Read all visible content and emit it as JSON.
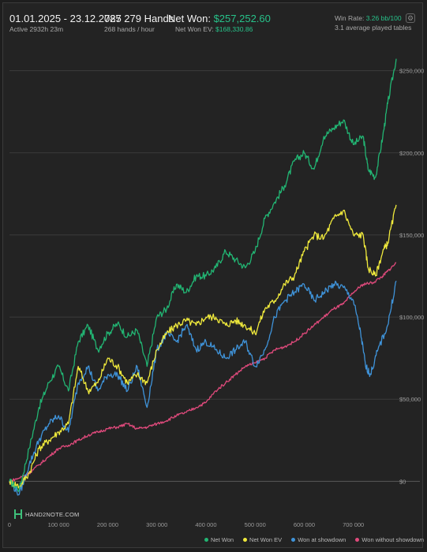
{
  "header": {
    "date_range": "01.01.2025 - 23.12.2025",
    "active": "Active 2932h 23m",
    "hands": "787 279 Hands",
    "hands_per_hour": "268 hands / hour",
    "net_won_label": "Net Won:",
    "net_won_value": "$257,252.60",
    "net_won_ev_label": "Net Won  EV:",
    "net_won_ev_value": "$168,330.86",
    "win_rate_label": "Win Rate:",
    "win_rate_value": "3.26 bb/100",
    "tables": "3.1 average played tables"
  },
  "icons": {
    "settings": "gear-icon"
  },
  "logo": {
    "text": "HAND2NOTE.COM"
  },
  "colors": {
    "net_won": "#22b573",
    "net_won_ev": "#f0ea3c",
    "showdown": "#3f93d9",
    "non_showdown": "#e04a7c"
  },
  "chart_data": {
    "type": "line",
    "xlim": [
      0,
      787279
    ],
    "ylim": [
      -20000,
      270000
    ],
    "x_ticks": [
      0,
      100000,
      200000,
      300000,
      400000,
      500000,
      600000,
      700000
    ],
    "x_tick_labels": [
      "0",
      "100 000",
      "200 000",
      "300 000",
      "400 000",
      "500 000",
      "600 000",
      "700 000"
    ],
    "y_ticks": [
      0,
      50000,
      100000,
      150000,
      200000,
      250000
    ],
    "y_tick_labels": [
      "$0",
      "$50,000",
      "$100,000",
      "$150,000",
      "$200,000",
      "$250,000"
    ],
    "grid": true,
    "legend_position": "bottom-right",
    "series": [
      {
        "name": "Net Won",
        "color_key": "net_won",
        "x": [
          0,
          20000,
          40000,
          60000,
          80000,
          100000,
          120000,
          140000,
          160000,
          180000,
          200000,
          220000,
          240000,
          260000,
          280000,
          300000,
          320000,
          340000,
          360000,
          380000,
          400000,
          420000,
          440000,
          460000,
          480000,
          500000,
          520000,
          540000,
          560000,
          580000,
          600000,
          620000,
          640000,
          660000,
          680000,
          700000,
          720000,
          730000,
          745000,
          760000,
          770000,
          787279
        ],
        "y": [
          0,
          -5000,
          20000,
          45000,
          60000,
          70000,
          55000,
          85000,
          95000,
          80000,
          90000,
          96000,
          88000,
          92000,
          70000,
          100000,
          105000,
          120000,
          115000,
          125000,
          125000,
          130000,
          140000,
          135000,
          130000,
          140000,
          160000,
          170000,
          180000,
          195000,
          200000,
          190000,
          210000,
          215000,
          220000,
          205000,
          210000,
          190000,
          185000,
          210000,
          230000,
          257252
        ]
      },
      {
        "name": "Net Won  EV",
        "color_key": "net_won_ev",
        "x": [
          0,
          20000,
          40000,
          60000,
          80000,
          100000,
          120000,
          140000,
          160000,
          180000,
          200000,
          220000,
          240000,
          260000,
          280000,
          300000,
          320000,
          340000,
          360000,
          380000,
          400000,
          420000,
          440000,
          460000,
          480000,
          500000,
          520000,
          540000,
          560000,
          580000,
          600000,
          620000,
          640000,
          660000,
          680000,
          700000,
          720000,
          730000,
          745000,
          760000,
          770000,
          787279
        ],
        "y": [
          0,
          -3000,
          5000,
          20000,
          25000,
          30000,
          35000,
          70000,
          55000,
          60000,
          75000,
          70000,
          60000,
          65000,
          60000,
          80000,
          90000,
          95000,
          98000,
          95000,
          100000,
          100000,
          95000,
          98000,
          95000,
          90000,
          105000,
          110000,
          120000,
          125000,
          140000,
          150000,
          148000,
          160000,
          165000,
          150000,
          150000,
          130000,
          125000,
          140000,
          145000,
          168330
        ]
      },
      {
        "name": "Won at showdown",
        "color_key": "showdown",
        "x": [
          0,
          20000,
          40000,
          60000,
          80000,
          100000,
          120000,
          140000,
          160000,
          180000,
          200000,
          220000,
          240000,
          260000,
          280000,
          300000,
          320000,
          340000,
          360000,
          380000,
          400000,
          420000,
          440000,
          460000,
          480000,
          500000,
          520000,
          540000,
          560000,
          580000,
          600000,
          620000,
          640000,
          660000,
          680000,
          700000,
          715000,
          725000,
          735000,
          750000,
          770000,
          787279
        ],
        "y": [
          0,
          -8000,
          10000,
          25000,
          35000,
          40000,
          30000,
          60000,
          70000,
          55000,
          65000,
          65000,
          55000,
          70000,
          45000,
          80000,
          90000,
          85000,
          95000,
          80000,
          85000,
          80000,
          75000,
          80000,
          85000,
          70000,
          80000,
          100000,
          110000,
          115000,
          120000,
          110000,
          115000,
          120000,
          118000,
          110000,
          90000,
          70000,
          65000,
          80000,
          95000,
          122000
        ]
      },
      {
        "name": "Won without showdown",
        "color_key": "non_showdown",
        "x": [
          0,
          20000,
          40000,
          60000,
          80000,
          100000,
          120000,
          140000,
          160000,
          180000,
          200000,
          220000,
          240000,
          260000,
          280000,
          300000,
          320000,
          340000,
          360000,
          380000,
          400000,
          420000,
          440000,
          460000,
          480000,
          500000,
          520000,
          540000,
          560000,
          580000,
          600000,
          620000,
          640000,
          660000,
          680000,
          700000,
          720000,
          740000,
          760000,
          770000,
          787279
        ],
        "y": [
          0,
          2000,
          5000,
          10000,
          15000,
          20000,
          22000,
          25000,
          28000,
          30000,
          32000,
          33000,
          35000,
          32000,
          33000,
          35000,
          37000,
          40000,
          42000,
          45000,
          48000,
          55000,
          60000,
          65000,
          70000,
          72000,
          75000,
          80000,
          82000,
          85000,
          90000,
          95000,
          100000,
          105000,
          108000,
          115000,
          120000,
          121000,
          125000,
          128000,
          133000
        ]
      }
    ]
  }
}
